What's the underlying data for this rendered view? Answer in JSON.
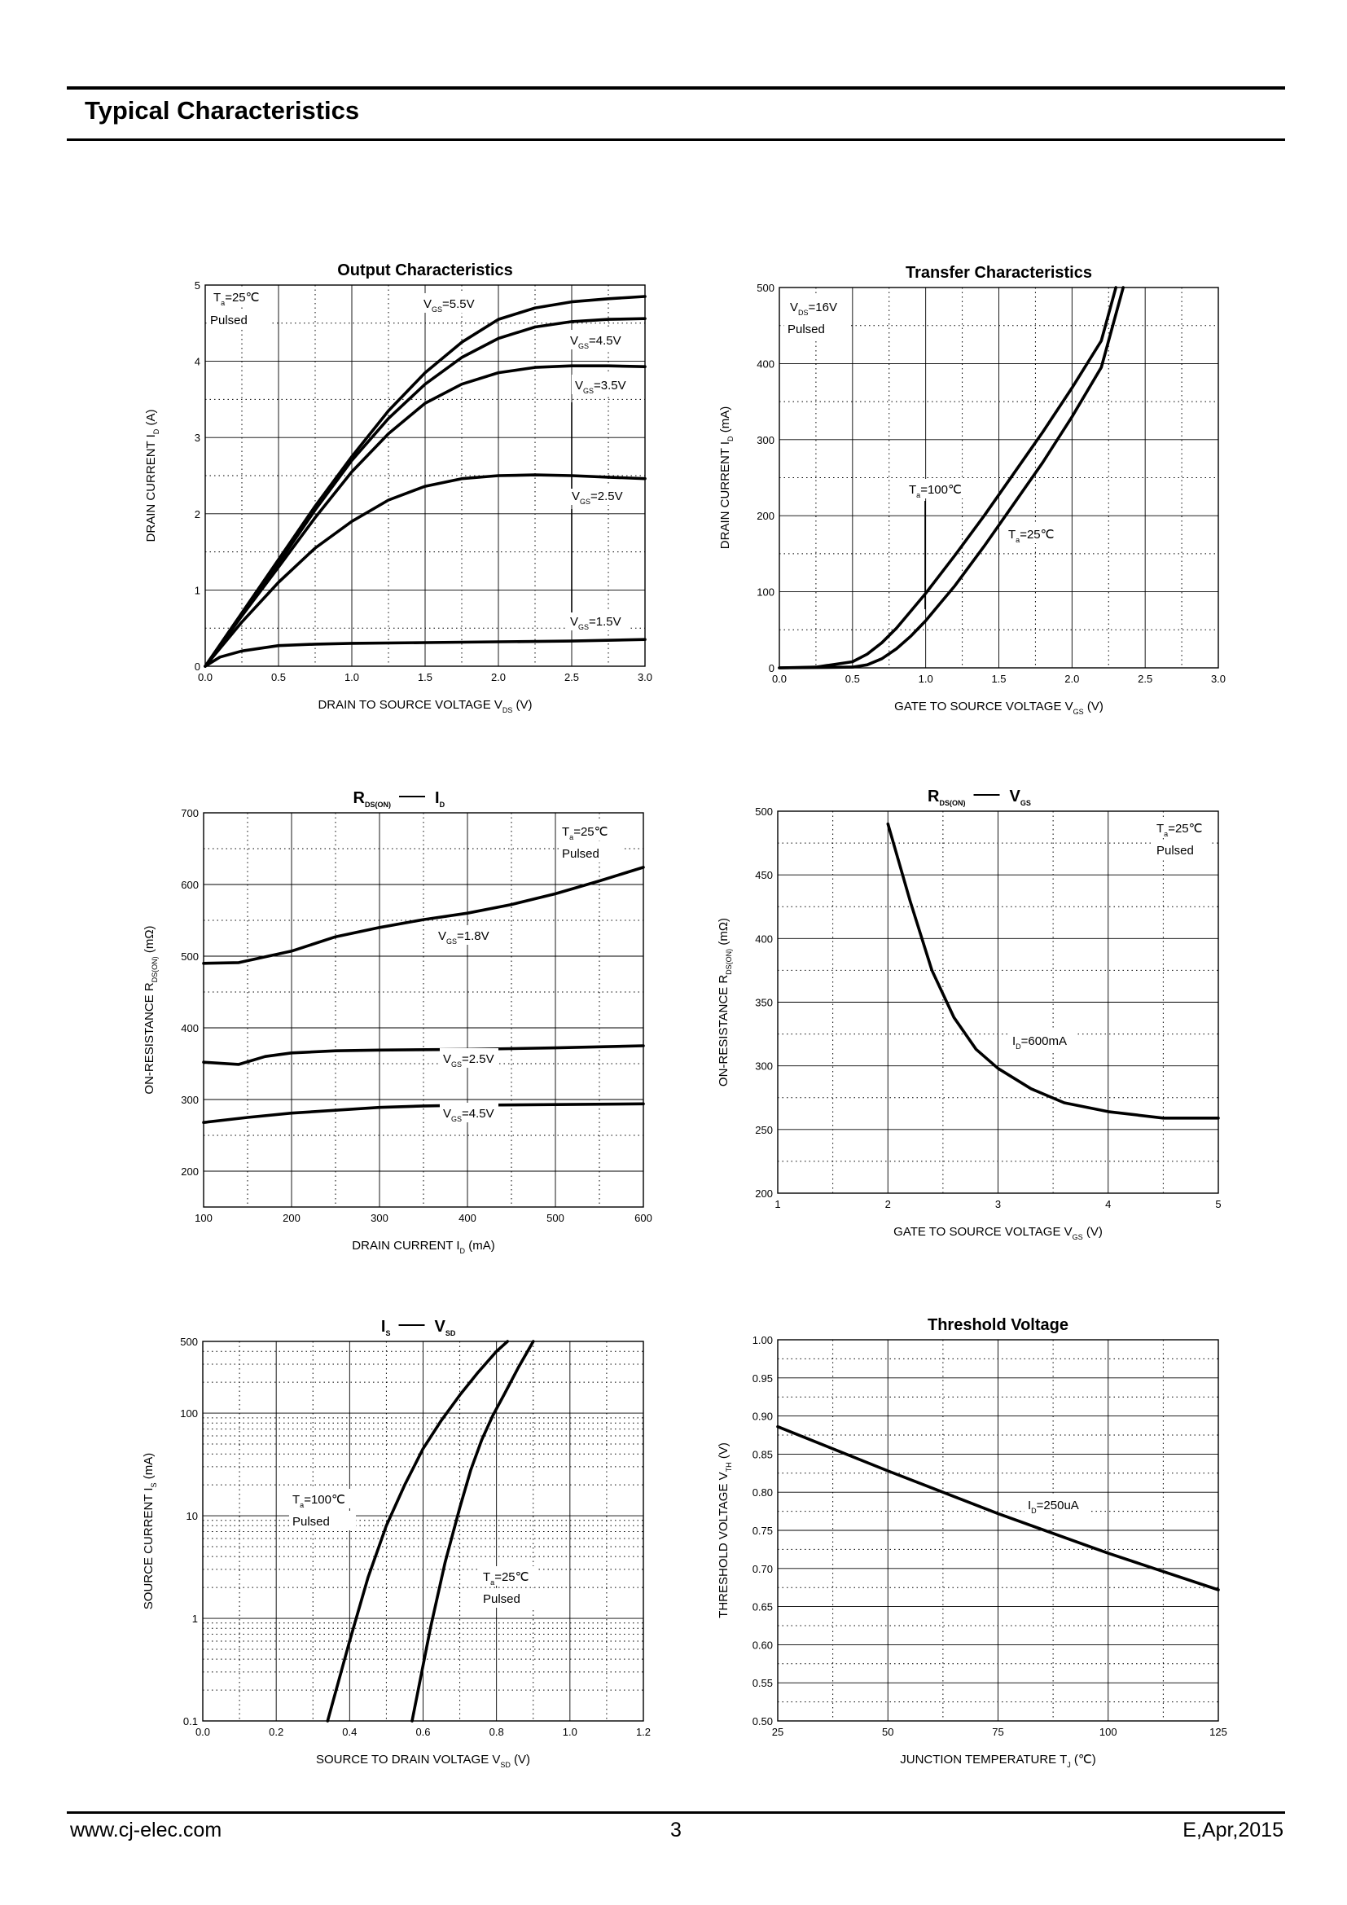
{
  "header": {
    "title": "Typical Characteristics"
  },
  "footer": {
    "website": "www.cj-elec.com",
    "page": "3",
    "revision": "E,Apr,2015"
  },
  "chart_data": [
    {
      "id": "output",
      "type": "line",
      "title": "Output Characteristics",
      "xlabel": "DRAIN TO SOURCE VOLTAGE V_DS (V)",
      "ylabel": "DRAIN CURRENT I_D (A)",
      "xlim": [
        0,
        3
      ],
      "ylim": [
        0,
        5
      ],
      "xticks": [
        "0.0",
        "0.5",
        "1.0",
        "1.5",
        "2.0",
        "2.5",
        "3.0"
      ],
      "yticks": [
        "0",
        "1",
        "2",
        "3",
        "4",
        "5"
      ],
      "annotation": [
        "Ta=25℃",
        "Pulsed"
      ],
      "series": [
        {
          "name": "VGS=5.5V",
          "x": [
            0,
            0.25,
            0.5,
            0.75,
            1.0,
            1.25,
            1.5,
            1.75,
            2.0,
            2.25,
            2.5,
            2.75,
            3.0
          ],
          "y": [
            0,
            0.7,
            1.4,
            2.1,
            2.75,
            3.35,
            3.85,
            4.25,
            4.55,
            4.7,
            4.78,
            4.82,
            4.85
          ]
        },
        {
          "name": "VGS=4.5V",
          "x": [
            0,
            0.25,
            0.5,
            0.75,
            1.0,
            1.25,
            1.5,
            1.75,
            2.0,
            2.25,
            2.5,
            2.75,
            3.0
          ],
          "y": [
            0,
            0.68,
            1.35,
            2.05,
            2.7,
            3.25,
            3.7,
            4.05,
            4.3,
            4.45,
            4.52,
            4.55,
            4.56
          ]
        },
        {
          "name": "VGS=3.5V",
          "x": [
            0,
            0.25,
            0.5,
            0.75,
            1.0,
            1.25,
            1.5,
            1.75,
            2.0,
            2.25,
            2.5,
            2.75,
            3.0
          ],
          "y": [
            0,
            0.66,
            1.3,
            1.95,
            2.55,
            3.05,
            3.45,
            3.7,
            3.85,
            3.92,
            3.94,
            3.94,
            3.93
          ]
        },
        {
          "name": "VGS=2.5V",
          "x": [
            0,
            0.25,
            0.5,
            0.75,
            1.0,
            1.25,
            1.5,
            1.75,
            2.0,
            2.25,
            2.5,
            2.75,
            3.0
          ],
          "y": [
            0,
            0.58,
            1.1,
            1.55,
            1.9,
            2.18,
            2.36,
            2.46,
            2.5,
            2.51,
            2.5,
            2.48,
            2.46
          ]
        },
        {
          "name": "VGS=1.5V",
          "x": [
            0,
            0.1,
            0.25,
            0.5,
            0.75,
            1.0,
            1.5,
            2.0,
            2.5,
            3.0
          ],
          "y": [
            0,
            0.12,
            0.2,
            0.27,
            0.29,
            0.3,
            0.31,
            0.32,
            0.33,
            0.35
          ]
        }
      ]
    },
    {
      "id": "transfer",
      "type": "line",
      "title": "Transfer Characteristics",
      "xlabel": "GATE TO SOURCE VOLTAGE V_GS (V)",
      "ylabel": "DRAIN CURRENT I_D (mA)",
      "xlim": [
        0,
        3
      ],
      "ylim": [
        0,
        500
      ],
      "xticks": [
        "0.0",
        "0.5",
        "1.0",
        "1.5",
        "2.0",
        "2.5",
        "3.0"
      ],
      "yticks": [
        "0",
        "100",
        "200",
        "300",
        "400",
        "500"
      ],
      "annotation": [
        "VDS=16V",
        "Pulsed"
      ],
      "series": [
        {
          "name": "Ta=100℃",
          "x": [
            0,
            0.25,
            0.5,
            0.6,
            0.7,
            0.8,
            0.9,
            1.0,
            1.2,
            1.4,
            1.6,
            1.8,
            2.0,
            2.2,
            2.3
          ],
          "y": [
            0,
            1,
            8,
            18,
            33,
            52,
            75,
            98,
            148,
            200,
            255,
            310,
            368,
            430,
            500
          ]
        },
        {
          "name": "Ta=25℃",
          "x": [
            0,
            0.5,
            0.6,
            0.7,
            0.8,
            0.9,
            1.0,
            1.1,
            1.2,
            1.4,
            1.6,
            1.8,
            2.0,
            2.2,
            2.35
          ],
          "y": [
            0,
            1,
            4,
            12,
            25,
            42,
            62,
            85,
            108,
            160,
            215,
            270,
            330,
            395,
            500
          ]
        }
      ]
    },
    {
      "id": "rds-id",
      "type": "line",
      "title": "RDS(ON) — ID",
      "xlabel": "DRAIN CURRENT I_D (mA)",
      "ylabel": "ON-RESISTANCE R_DS(ON) (mΩ)",
      "xlim": [
        100,
        600
      ],
      "ylim": [
        150,
        700
      ],
      "xticks": [
        "100",
        "200",
        "300",
        "400",
        "500",
        "600"
      ],
      "yticks": [
        "200",
        "300",
        "400",
        "500",
        "600",
        "700"
      ],
      "annotation": [
        "Ta=25℃",
        "Pulsed"
      ],
      "series": [
        {
          "name": "VGS=1.8V",
          "x": [
            100,
            140,
            200,
            250,
            300,
            350,
            400,
            450,
            500,
            550,
            600
          ],
          "y": [
            490,
            491,
            507,
            527,
            540,
            551,
            560,
            572,
            587,
            605,
            624
          ]
        },
        {
          "name": "VGS=2.5V",
          "x": [
            100,
            140,
            170,
            200,
            250,
            300,
            400,
            500,
            600
          ],
          "y": [
            352,
            349,
            360,
            365,
            368,
            369,
            370,
            372,
            375
          ]
        },
        {
          "name": "VGS=4.5V",
          "x": [
            100,
            150,
            200,
            250,
            300,
            350,
            400,
            500,
            600
          ],
          "y": [
            268,
            275,
            281,
            285,
            289,
            291,
            292,
            293,
            294
          ]
        }
      ]
    },
    {
      "id": "rds-vgs",
      "type": "line",
      "title": "RDS(ON) — VGS",
      "xlabel": "GATE TO SOURCE VOLTAGE V_GS (V)",
      "ylabel": "ON-RESISTANCE R_DS(ON) (mΩ)",
      "xlim": [
        1,
        5
      ],
      "ylim": [
        200,
        500
      ],
      "xticks": [
        "1",
        "2",
        "3",
        "4",
        "5"
      ],
      "yticks": [
        "200",
        "250",
        "300",
        "350",
        "400",
        "450",
        "500"
      ],
      "annotation": [
        "Ta=25℃",
        "Pulsed"
      ],
      "series": [
        {
          "name": "ID=600mA",
          "x": [
            2.0,
            2.2,
            2.4,
            2.6,
            2.8,
            3.0,
            3.3,
            3.6,
            4.0,
            4.5,
            5.0
          ],
          "y": [
            490,
            430,
            375,
            338,
            313,
            298,
            282,
            271,
            264,
            259,
            259
          ]
        }
      ]
    },
    {
      "id": "is-vsd",
      "type": "line",
      "title": "IS — VSD",
      "xlabel": "SOURCE TO DRAIN VOLTAGE V_SD (V)",
      "ylabel": "SOURCE CURRENT I_S (mA)",
      "xlim": [
        0,
        1.2
      ],
      "ylim": [
        0.1,
        500
      ],
      "yscale": "log",
      "xticks": [
        "0.0",
        "0.2",
        "0.4",
        "0.6",
        "0.8",
        "1.0",
        "1.2"
      ],
      "yticks": [
        "0.1",
        "1",
        "10",
        "100",
        "500"
      ],
      "series": [
        {
          "name": "Ta=100℃ Pulsed",
          "x": [
            0.34,
            0.4,
            0.45,
            0.5,
            0.55,
            0.6,
            0.65,
            0.7,
            0.75,
            0.8,
            0.83
          ],
          "y": [
            0.1,
            0.6,
            2.5,
            8,
            20,
            45,
            85,
            150,
            250,
            400,
            500
          ]
        },
        {
          "name": "Ta=25℃ Pulsed",
          "x": [
            0.57,
            0.62,
            0.66,
            0.7,
            0.73,
            0.76,
            0.79,
            0.82,
            0.86,
            0.9
          ],
          "y": [
            0.1,
            0.8,
            3.5,
            12,
            28,
            55,
            95,
            150,
            280,
            500
          ]
        }
      ]
    },
    {
      "id": "threshold",
      "type": "line",
      "title": "Threshold Voltage",
      "xlabel": "JUNCTION TEMPERATURE T_J (℃)",
      "ylabel": "THRESHOLD VOLTAGE V_TH (V)",
      "xlim": [
        25,
        125
      ],
      "ylim": [
        0.5,
        1.0
      ],
      "xticks": [
        "25",
        "50",
        "75",
        "100",
        "125"
      ],
      "yticks": [
        "0.50",
        "0.55",
        "0.60",
        "0.65",
        "0.70",
        "0.75",
        "0.80",
        "0.85",
        "0.90",
        "0.95",
        "1.00"
      ],
      "series": [
        {
          "name": "ID=250uA",
          "x": [
            25,
            50,
            75,
            100,
            125
          ],
          "y": [
            0.886,
            0.828,
            0.772,
            0.72,
            0.672
          ]
        }
      ]
    }
  ]
}
